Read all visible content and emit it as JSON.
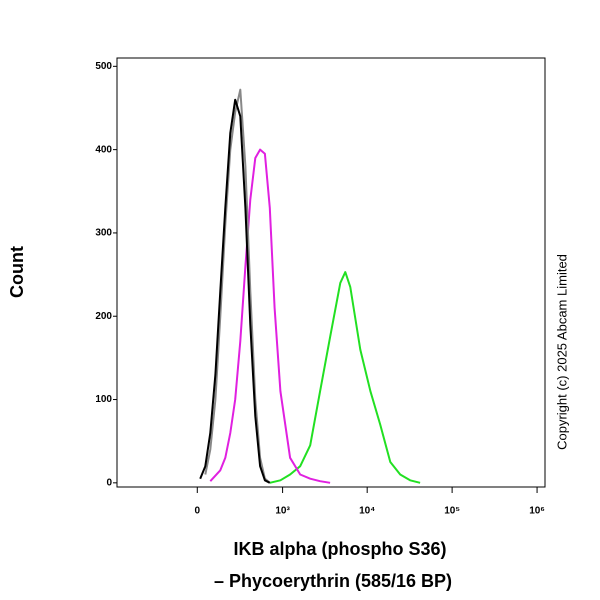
{
  "chart_data": {
    "type": "line",
    "xlabel": [
      "IKB alpha (phospho S36)",
      "– Phycoerythrin (585/16 BP)"
    ],
    "ylabel": "Count",
    "annotation": "Copyright (c) 2025 Abcam Limited",
    "xscale": "asinh",
    "xlim": [
      -870,
      1240000
    ],
    "ylim": [
      -5,
      510
    ],
    "xticks": [
      0,
      {
        "value": 1000,
        "label": "10³"
      },
      {
        "value": 10000,
        "label": "10⁴"
      },
      {
        "value": 100000,
        "label": "10⁵"
      },
      {
        "value": 1000000,
        "label": "10⁶"
      }
    ],
    "yticks": [
      0,
      100,
      200,
      300,
      400,
      500
    ],
    "grid": false,
    "series": [
      {
        "color": "#22e022",
        "x": [
          700,
          940,
          1230,
          1620,
          2130,
          2790,
          3660,
          4820,
          5520,
          6320,
          8300,
          10900,
          14250,
          18700,
          24500,
          32000,
          42000
        ],
        "values": [
          0,
          3,
          10,
          20,
          45,
          110,
          175,
          240,
          253,
          235,
          160,
          110,
          70,
          25,
          10,
          3,
          0
        ]
      },
      {
        "color": "#e020e0",
        "x": [
          72,
          133,
          167,
          204,
          244,
          290,
          341,
          397,
          461,
          531,
          610,
          700,
          800,
          940,
          1230,
          1620,
          2130,
          2790,
          3660
        ],
        "values": [
          2,
          15,
          30,
          60,
          100,
          170,
          260,
          340,
          390,
          400,
          395,
          330,
          210,
          110,
          30,
          10,
          5,
          2,
          0
        ]
      },
      {
        "color": "#888888",
        "x": [
          44,
          72,
          102,
          133,
          167,
          204,
          244,
          290,
          341,
          397,
          461,
          531,
          610,
          700
        ],
        "values": [
          10,
          40,
          100,
          200,
          310,
          400,
          445,
          472,
          380,
          230,
          100,
          30,
          5,
          0
        ]
      },
      {
        "color": "#000000",
        "x": [
          16,
          44,
          72,
          102,
          133,
          167,
          204,
          244,
          290,
          341,
          397,
          461,
          531,
          610,
          700
        ],
        "values": [
          5,
          20,
          60,
          130,
          230,
          330,
          420,
          460,
          440,
          330,
          190,
          80,
          20,
          3,
          0
        ]
      }
    ]
  }
}
